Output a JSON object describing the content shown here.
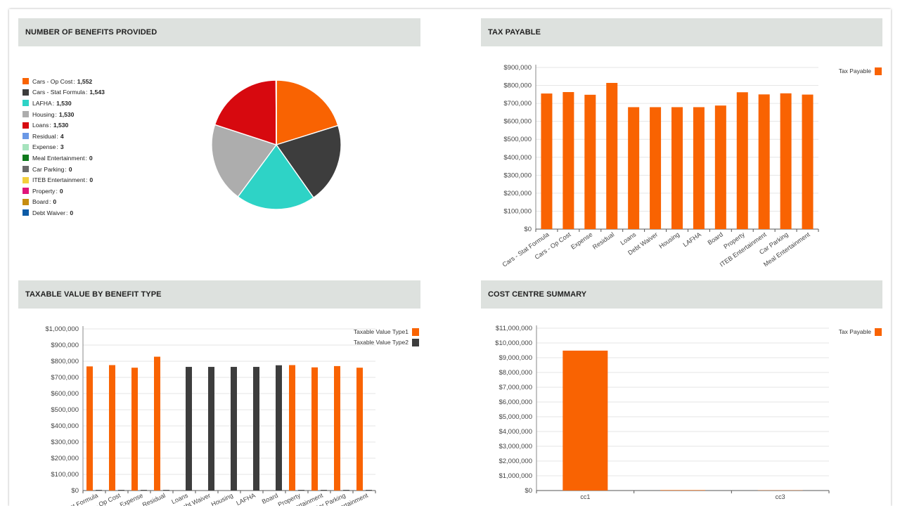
{
  "panels": {
    "benefits_count": {
      "title": "NUMBER OF BENEFITS PROVIDED"
    },
    "tax_payable": {
      "title": "TAX PAYABLE"
    },
    "taxable_value": {
      "title": "TAXABLE VALUE BY BENEFIT TYPE"
    },
    "cost_centre": {
      "title": "COST CENTRE SUMMARY"
    }
  },
  "chart_data": [
    {
      "id": "benefits_count",
      "type": "pie",
      "title": "NUMBER OF BENEFITS PROVIDED",
      "legend_position": "left",
      "slices": [
        {
          "label": "Cars - Op Cost",
          "value": 1552,
          "display": "1,552",
          "color": "#f96302"
        },
        {
          "label": "Cars - Stat Formula",
          "value": 1543,
          "display": "1,543",
          "color": "#3d3d3d"
        },
        {
          "label": "LAFHA",
          "value": 1530,
          "display": "1,530",
          "color": "#2ed3c6"
        },
        {
          "label": "Housing",
          "value": 1530,
          "display": "1,530",
          "color": "#adadad"
        },
        {
          "label": "Loans",
          "value": 1530,
          "display": "1,530",
          "color": "#d7090f"
        },
        {
          "label": "Residual",
          "value": 4,
          "display": "4",
          "color": "#6a98e6"
        },
        {
          "label": "Expense",
          "value": 3,
          "display": "3",
          "color": "#a6e3bd"
        },
        {
          "label": "Meal Entertainment",
          "value": 0,
          "display": "0",
          "color": "#0f7a1c"
        },
        {
          "label": "Car Parking",
          "value": 0,
          "display": "0",
          "color": "#6b6b6b"
        },
        {
          "label": "ITEB Entertainment",
          "value": 0,
          "display": "0",
          "color": "#f3cf3c"
        },
        {
          "label": "Property",
          "value": 0,
          "display": "0",
          "color": "#e0157a"
        },
        {
          "label": "Board",
          "value": 0,
          "display": "0",
          "color": "#c68c10"
        },
        {
          "label": "Debt Waiver",
          "value": 0,
          "display": "0",
          "color": "#0d5ba6"
        }
      ]
    },
    {
      "id": "tax_payable",
      "type": "bar",
      "title": "TAX PAYABLE",
      "categories": [
        "Cars - Stat Formula",
        "Cars - Op Cost",
        "Expense",
        "Residual",
        "Loans",
        "Debt Waiver",
        "Housing",
        "LAFHA",
        "Board",
        "Property",
        "ITEB Entertainment",
        "Car Parking",
        "Meal Entertainment"
      ],
      "series": [
        {
          "name": "Tax Payable",
          "color": "#f96302",
          "values": [
            755000,
            763000,
            748000,
            814000,
            679000,
            679000,
            679000,
            679000,
            688000,
            762000,
            750000,
            756000,
            749000
          ]
        }
      ],
      "ylim": [
        0,
        900000
      ],
      "yticks": [
        "$0",
        "$100,000",
        "$200,000",
        "$300,000",
        "$400,000",
        "$500,000",
        "$600,000",
        "$700,000",
        "$800,000",
        "$900,000"
      ],
      "legend_position": "top-right",
      "grid": true
    },
    {
      "id": "taxable_value",
      "type": "bar",
      "title": "TAXABLE VALUE BY BENEFIT TYPE",
      "categories": [
        "Cars - Stat Formula",
        "Cars - Op Cost",
        "Expense",
        "Residual",
        "Loans",
        "Debt Waiver",
        "Housing",
        "LAFHA",
        "Board",
        "Property",
        "ITEB Entertainment",
        "Car Parking",
        "Meal Entertainment"
      ],
      "series": [
        {
          "name": "Taxable Value Type1",
          "color": "#f96302",
          "values": [
            768000,
            776000,
            760000,
            828000,
            0,
            0,
            0,
            0,
            0,
            776000,
            762000,
            770000,
            760000
          ]
        },
        {
          "name": "Taxable Value Type2",
          "color": "#3d3d3d",
          "values": [
            4000,
            4000,
            4000,
            4000,
            765000,
            765000,
            765000,
            765000,
            775000,
            4000,
            4000,
            4000,
            4000
          ]
        }
      ],
      "ylim": [
        0,
        1000000
      ],
      "yticks": [
        "$0",
        "$100,000",
        "$200,000",
        "$300,000",
        "$400,000",
        "$500,000",
        "$600,000",
        "$700,000",
        "$800,000",
        "$900,000",
        "$1,000,000"
      ],
      "legend_position": "top-right",
      "grid": true
    },
    {
      "id": "cost_centre",
      "type": "bar",
      "title": "COST CENTRE SUMMARY",
      "categories": [
        "cc1",
        "",
        "cc3"
      ],
      "series": [
        {
          "name": "Tax Payable",
          "color": "#f96302",
          "values": [
            9480000,
            30000,
            15000
          ]
        }
      ],
      "ylim": [
        0,
        11000000
      ],
      "yticks": [
        "$0",
        "$1,000,000",
        "$2,000,000",
        "$3,000,000",
        "$4,000,000",
        "$5,000,000",
        "$6,000,000",
        "$7,000,000",
        "$8,000,000",
        "$9,000,000",
        "$10,000,000",
        "$11,000,000"
      ],
      "legend_position": "top-right",
      "grid": true
    }
  ]
}
